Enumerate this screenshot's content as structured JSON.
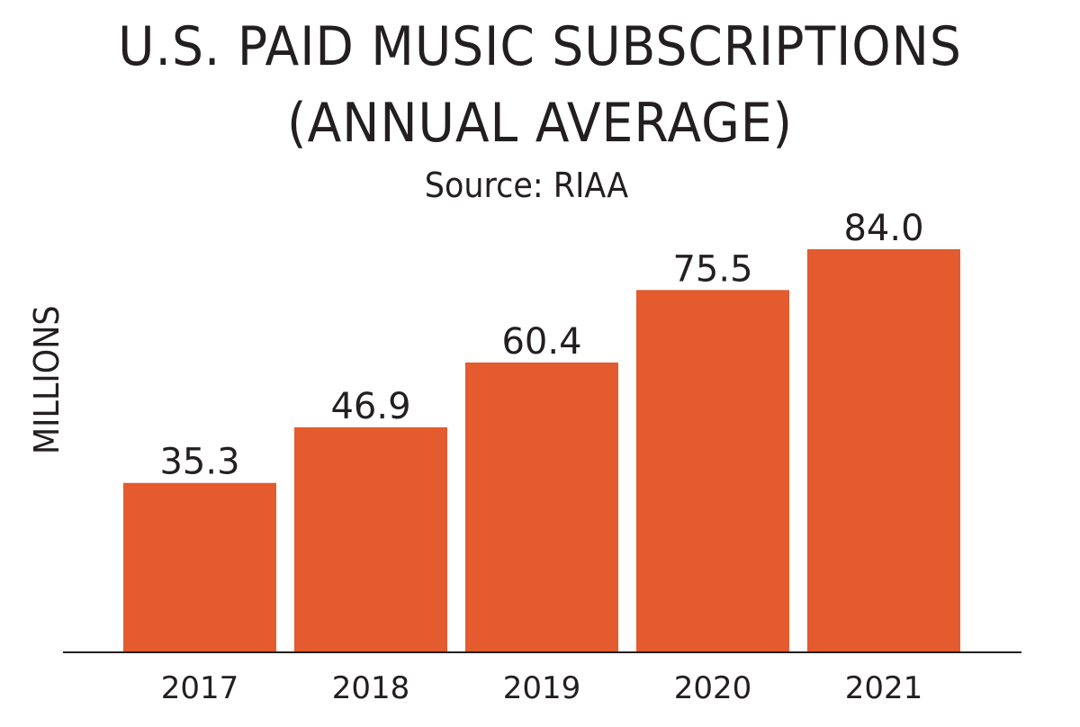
{
  "chart_data": {
    "type": "bar",
    "title": "U.S. PAID MUSIC SUBSCRIPTIONS",
    "subtitle": "(ANNUAL AVERAGE)",
    "source": "Source: RIAA",
    "xlabel": "",
    "ylabel": "MILLIONS",
    "categories": [
      "2017",
      "2018",
      "2019",
      "2020",
      "2021"
    ],
    "values": [
      35.3,
      46.9,
      60.4,
      75.5,
      84.0
    ],
    "value_labels": [
      "35.3",
      "46.9",
      "60.4",
      "75.5",
      "84.0"
    ],
    "ylim": [
      0,
      84
    ],
    "grid": false,
    "bar_color": "#E35B2E",
    "text_color": "#231F20"
  }
}
